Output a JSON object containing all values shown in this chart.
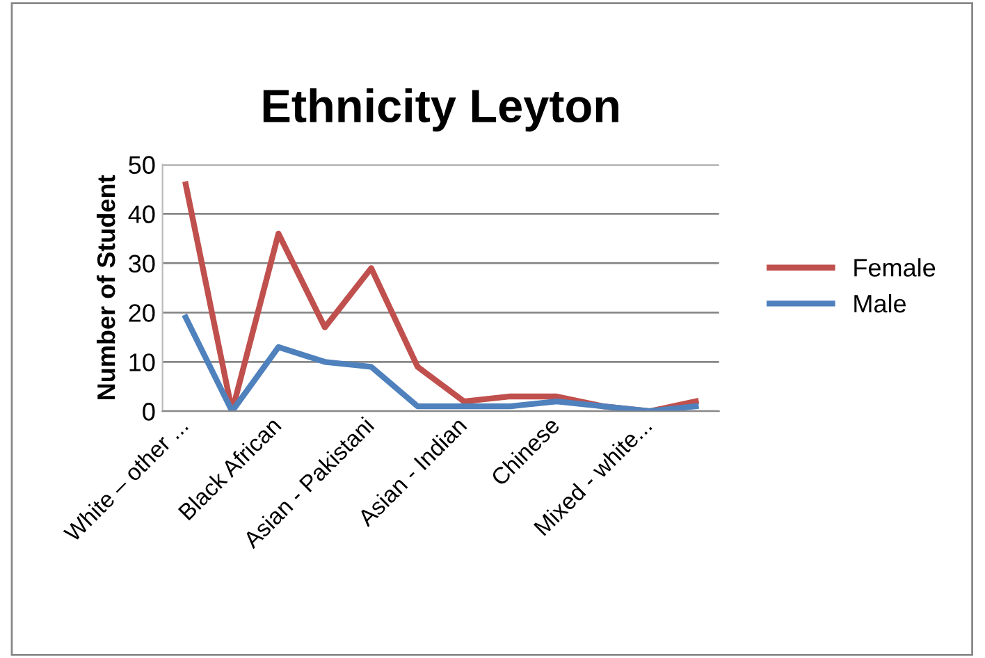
{
  "chart_data": {
    "type": "line",
    "title": "Ethnicity Leyton",
    "ylabel": "Number of Student",
    "categories": [
      "White – other ...",
      null,
      "Black African",
      null,
      "Asian - Pakistani",
      null,
      "Asian - Indian",
      null,
      "Chinese",
      null,
      "Mixed - white...",
      null
    ],
    "series": [
      {
        "name": "Female",
        "color": "#c0504d",
        "values": [
          46,
          0,
          36,
          17,
          29,
          9,
          2,
          3,
          3,
          1,
          0,
          2
        ]
      },
      {
        "name": "Male",
        "color": "#4f81bd",
        "values": [
          19,
          0,
          13,
          10,
          9,
          1,
          1,
          1,
          2,
          1,
          0,
          1
        ]
      }
    ],
    "ylim": [
      0,
      50
    ],
    "yticks": [
      0,
      10,
      20,
      30,
      40,
      50
    ],
    "grid": "y",
    "legend": "right",
    "marker": "none",
    "line_style": "solid"
  }
}
